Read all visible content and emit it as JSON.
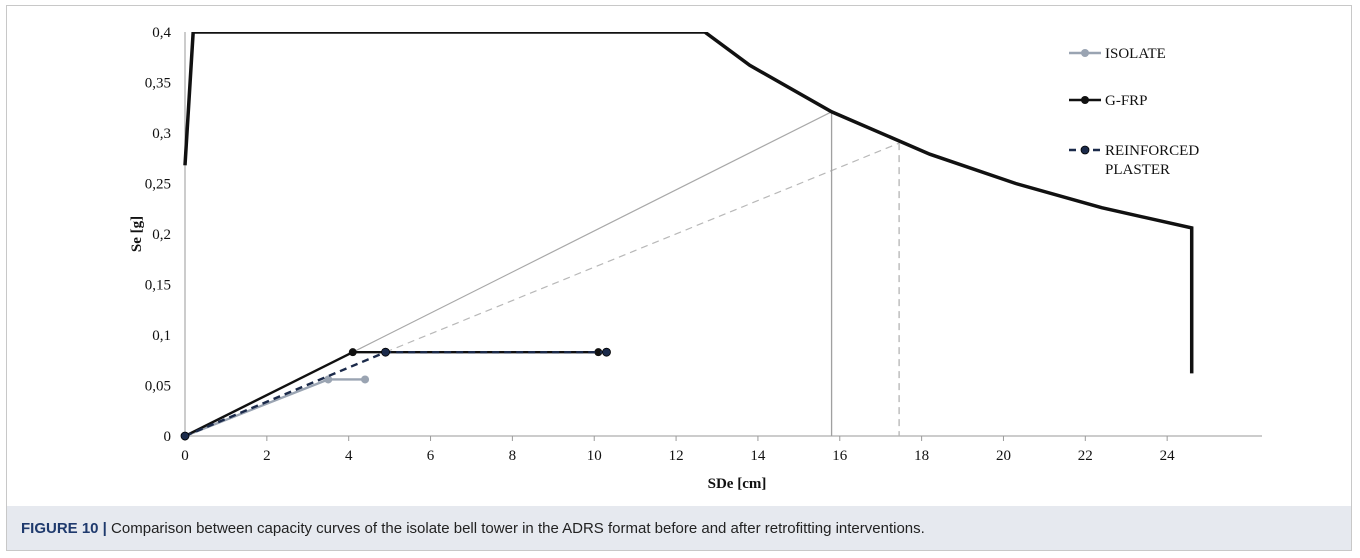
{
  "caption": {
    "figure_number": "FIGURE 10 |",
    "text": " Comparison between capacity curves of the isolate bell tower in the ADRS format before and after retrofitting interventions."
  },
  "chart_data": {
    "type": "line",
    "xlabel": "SDe [cm]",
    "ylabel": "Se [g]",
    "xlim": [
      0,
      26
    ],
    "ylim": [
      0,
      0.4
    ],
    "x_ticks": [
      "0",
      "2",
      "4",
      "6",
      "8",
      "10",
      "12",
      "14",
      "16",
      "18",
      "20",
      "22",
      "24"
    ],
    "y_ticks": [
      "0",
      "0,05",
      "0,1",
      "0,15",
      "0,2",
      "0,25",
      "0,3",
      "0,35",
      "0,4"
    ],
    "grid": false,
    "legend_position": "top-right",
    "colors": {
      "isolate": "#9aa4b2",
      "gfrp": "#111111",
      "reinforced": "#1b2a4a",
      "spectrum": "#111111",
      "guide": "#a8a8a8"
    },
    "series": [
      {
        "name": "ISOLATE",
        "style": "solid",
        "color": "#9aa4b2",
        "x": [
          0,
          3.5,
          4.4
        ],
        "y": [
          0,
          0.056,
          0.056
        ]
      },
      {
        "name": "G-FRP",
        "style": "solid",
        "color": "#111111",
        "x": [
          0,
          4.1,
          10.1
        ],
        "y": [
          0,
          0.083,
          0.083
        ]
      },
      {
        "name": "REINFORCED PLASTER",
        "style": "dashed",
        "color": "#1b2a4a",
        "x": [
          0,
          4.9,
          10.3
        ],
        "y": [
          0,
          0.083,
          0.083
        ]
      }
    ],
    "demand_spectrum": {
      "x": [
        0,
        0.2,
        12.7,
        13.8,
        15.8,
        18.2,
        20.3,
        22.4,
        24.6,
        24.6
      ],
      "y": [
        0.268,
        0.4,
        0.4,
        0.367,
        0.321,
        0.279,
        0.25,
        0.226,
        0.206,
        0.062
      ]
    },
    "guide_lines": [
      {
        "style": "solid",
        "x": [
          4.1,
          15.8
        ],
        "y": [
          0.083,
          0.321
        ]
      },
      {
        "style": "dashed",
        "x": [
          4.9,
          17.45
        ],
        "y": [
          0.083,
          0.29
        ]
      }
    ],
    "performance_points": [
      {
        "style": "solid",
        "x": 15.8,
        "y": 0.321
      },
      {
        "style": "dashed",
        "x": 17.45,
        "y": 0.29
      }
    ]
  }
}
